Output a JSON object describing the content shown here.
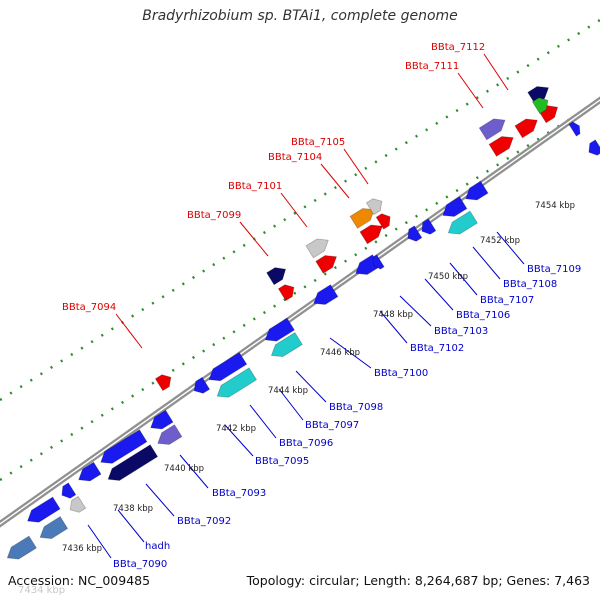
{
  "title": "Bradyrhizobium sp. BTAi1, complete genome",
  "footer": {
    "accession": "Accession: NC_009485",
    "summary": "Topology: circular; Length: 8,264,687 bp; Genes: 7,463"
  },
  "colors": {
    "backbone": "#909090",
    "tick_dots": "#2e8b2e",
    "forward_label": "#dd0000",
    "reverse_label": "#0000cc",
    "gene_blue": "#1a1aee",
    "gene_red": "#ee0000",
    "gene_steel": "#4a7ab8",
    "gene_navy": "#0a0a66",
    "gene_slate": "#6e5ecc",
    "gene_gray": "#c8c8c8",
    "gene_cyan": "#22cccc",
    "gene_orange": "#ee8800",
    "gene_green": "#22bb22"
  },
  "scale_labels": [
    "7436 kbp",
    "7438 kbp",
    "7440 kbp",
    "7442 kbp",
    "7444 kbp",
    "7446 kbp",
    "7448 kbp",
    "7450 kbp",
    "7452 kbp",
    "7454 kbp"
  ],
  "watermark": "7434 kbp",
  "forward_genes": [
    "BBta_7094",
    "BBta_7099",
    "BBta_7101",
    "BBta_7104",
    "BBta_7105",
    "BBta_7111",
    "BBta_7112"
  ],
  "reverse_genes": [
    "BBta_7090",
    "hadh",
    "BBta_7092",
    "BBta_7093",
    "BBta_7095",
    "BBta_7096",
    "BBta_7097",
    "BBta_7098",
    "BBta_7100",
    "BBta_7102",
    "BBta_7103",
    "BBta_7106",
    "BBta_7107",
    "BBta_7108",
    "BBta_7109"
  ]
}
